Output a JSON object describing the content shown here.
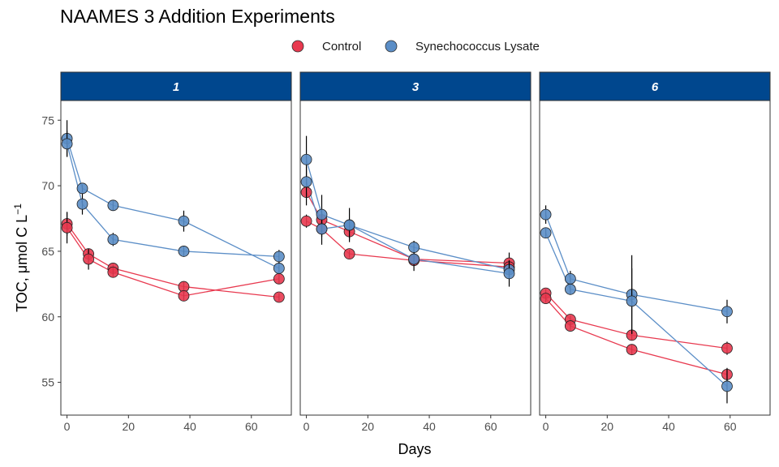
{
  "chart_data": {
    "type": "scatter",
    "title": "NAAMES 3 Addition Experiments",
    "xlabel": "Days",
    "ylabel": "TOC, μmol C L",
    "ylabel_superscript": "−1",
    "xlim": [
      -2,
      73
    ],
    "ylim": [
      52.5,
      76.5
    ],
    "xticks": [
      0,
      20,
      40,
      60
    ],
    "yticks": [
      55,
      60,
      65,
      70,
      75
    ],
    "legend_position": "top",
    "grid": false,
    "colors": {
      "Control": "#e8394f",
      "Synechococcus Lysate": "#5b8ec7",
      "strip": "#00478e"
    },
    "legend": [
      "Control",
      "Synechococcus Lysate"
    ],
    "facets": [
      {
        "label": "1",
        "series": [
          {
            "name": "Control",
            "x": [
              0,
              7,
              15,
              38,
              69
            ],
            "y": [
              67.1,
              64.8,
              63.7,
              62.3,
              61.5
            ],
            "err": [
              0.9,
              0.4,
              0.3,
              0.4,
              0.3
            ]
          },
          {
            "name": "Control",
            "x": [
              0,
              7,
              15,
              38,
              69
            ],
            "y": [
              66.8,
              64.4,
              63.4,
              61.6,
              62.9
            ],
            "err": [
              1.2,
              0.8,
              0.4,
              0.4,
              0.4
            ]
          },
          {
            "name": "Synechococcus Lysate",
            "x": [
              0,
              5,
              15,
              38,
              69
            ],
            "y": [
              73.6,
              69.8,
              68.5,
              67.3,
              63.7
            ],
            "err": [
              1.4,
              0.3,
              0.4,
              0.8,
              0.4
            ]
          },
          {
            "name": "Synechococcus Lysate",
            "x": [
              0,
              5,
              15,
              38,
              69
            ],
            "y": [
              73.2,
              68.6,
              65.9,
              65.0,
              64.6
            ],
            "err": [
              1.0,
              0.8,
              0.5,
              0.4,
              0.5
            ]
          }
        ]
      },
      {
        "label": "3",
        "series": [
          {
            "name": "Control",
            "x": [
              0,
              5,
              14,
              35,
              66
            ],
            "y": [
              69.5,
              67.4,
              66.5,
              64.4,
              64.1
            ],
            "err": [
              1.0,
              0.6,
              0.6,
              0.4,
              0.8
            ]
          },
          {
            "name": "Control",
            "x": [
              0,
              5,
              14,
              35,
              66
            ],
            "y": [
              67.3,
              66.7,
              64.8,
              64.3,
              63.8
            ],
            "err": [
              0.5,
              1.2,
              0.3,
              0.8,
              0.5
            ]
          },
          {
            "name": "Synechococcus Lysate",
            "x": [
              0,
              5,
              14,
              35,
              66
            ],
            "y": [
              72.0,
              67.8,
              67.0,
              65.3,
              63.6
            ],
            "err": [
              1.8,
              1.5,
              1.3,
              0.5,
              0.6
            ]
          },
          {
            "name": "Synechococcus Lysate",
            "x": [
              0,
              5,
              14,
              35,
              66
            ],
            "y": [
              70.3,
              66.7,
              67.0,
              64.4,
              63.3
            ],
            "err": [
              1.2,
              0.6,
              0.4,
              0.5,
              1.0
            ]
          }
        ]
      },
      {
        "label": "6",
        "series": [
          {
            "name": "Control",
            "x": [
              0,
              8,
              28,
              59
            ],
            "y": [
              61.8,
              59.8,
              58.6,
              57.6
            ],
            "err": [
              0.3,
              0.3,
              0.4,
              0.5
            ]
          },
          {
            "name": "Control",
            "x": [
              0,
              8,
              28,
              59
            ],
            "y": [
              61.4,
              59.3,
              57.5,
              55.6
            ],
            "err": [
              0.3,
              0.3,
              0.4,
              0.5
            ]
          },
          {
            "name": "Synechococcus Lysate",
            "x": [
              0,
              8,
              28,
              59
            ],
            "y": [
              67.8,
              62.9,
              61.7,
              60.4
            ],
            "err": [
              0.7,
              0.6,
              3.0,
              0.9
            ]
          },
          {
            "name": "Synechococcus Lysate",
            "x": [
              0,
              8,
              28,
              59
            ],
            "y": [
              66.4,
              62.1,
              61.2,
              54.7
            ],
            "err": [
              0.4,
              0.4,
              2.5,
              1.3
            ]
          }
        ]
      }
    ]
  }
}
